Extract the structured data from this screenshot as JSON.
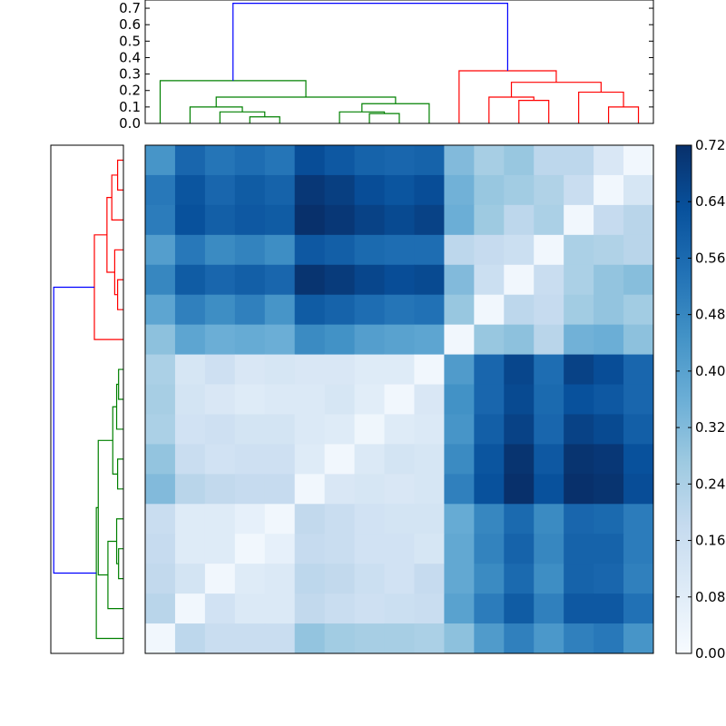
{
  "chart_data": [
    {
      "type": "dendrogram",
      "position": "top",
      "ylim": [
        0,
        0.75
      ],
      "yticks": [
        "0.0",
        "0.1",
        "0.2",
        "0.3",
        "0.4",
        "0.5",
        "0.6",
        "0.7"
      ],
      "colors": {
        "root": "#0000ff",
        "cluster_a": "#008000",
        "cluster_b": "#ff0000"
      },
      "leaves": 17,
      "merges": [
        {
          "a": 3.5,
          "b": 4.5,
          "h": 0.04,
          "color": "cluster_a"
        },
        {
          "a": 2.5,
          "b": 4,
          "h": 0.07,
          "color": "cluster_a"
        },
        {
          "a": 1.5,
          "b": 3.25,
          "h": 0.1,
          "color": "cluster_a"
        },
        {
          "a": 7.5,
          "b": 8.5,
          "h": 0.06,
          "color": "cluster_a"
        },
        {
          "a": 6.5,
          "b": 8,
          "h": 0.07,
          "color": "cluster_a"
        },
        {
          "a": 7.25,
          "b": 9.5,
          "h": 0.12,
          "color": "cluster_a"
        },
        {
          "a": 2.375,
          "b": 8.375,
          "h": 0.16,
          "color": "cluster_a"
        },
        {
          "a": 0.5,
          "b": 5.375,
          "h": 0.26,
          "color": "cluster_a"
        },
        {
          "a": 12.5,
          "b": 13.5,
          "h": 0.14,
          "color": "cluster_b"
        },
        {
          "a": 11.5,
          "b": 13,
          "h": 0.16,
          "color": "cluster_b"
        },
        {
          "a": 15.5,
          "b": 16.5,
          "h": 0.1,
          "color": "cluster_b"
        },
        {
          "a": 14.5,
          "b": 16,
          "h": 0.19,
          "color": "cluster_b"
        },
        {
          "a": 12.25,
          "b": 15.25,
          "h": 0.25,
          "color": "cluster_b"
        },
        {
          "a": 10.5,
          "b": 13.75,
          "h": 0.32,
          "color": "cluster_b"
        },
        {
          "a": 2.9375,
          "b": 12.125,
          "h": 0.73,
          "color": "root"
        }
      ]
    },
    {
      "type": "dendrogram",
      "position": "left",
      "xlim": [
        0,
        0.75
      ],
      "leaves": 17,
      "merges": [
        {
          "a": 0.5,
          "b": 1.5,
          "h": 0.06,
          "color": "cluster_b"
        },
        {
          "a": 1,
          "b": 2.5,
          "h": 0.12,
          "color": "cluster_b"
        },
        {
          "a": 4.5,
          "b": 5.5,
          "h": 0.06,
          "color": "cluster_b"
        },
        {
          "a": 3.5,
          "b": 5,
          "h": 0.09,
          "color": "cluster_b"
        },
        {
          "a": 1.75,
          "b": 4.25,
          "h": 0.17,
          "color": "cluster_b"
        },
        {
          "a": 3,
          "b": 6.5,
          "h": 0.3,
          "color": "cluster_b"
        },
        {
          "a": 7.5,
          "b": 8.5,
          "h": 0.05,
          "color": "cluster_a"
        },
        {
          "a": 8,
          "b": 9.5,
          "h": 0.07,
          "color": "cluster_a"
        },
        {
          "a": 10.5,
          "b": 11.5,
          "h": 0.06,
          "color": "cluster_a"
        },
        {
          "a": 8.75,
          "b": 11,
          "h": 0.11,
          "color": "cluster_a"
        },
        {
          "a": 13.5,
          "b": 14.5,
          "h": 0.05,
          "color": "cluster_a"
        },
        {
          "a": 12.5,
          "b": 14,
          "h": 0.07,
          "color": "cluster_a"
        },
        {
          "a": 13.25,
          "b": 15.5,
          "h": 0.16,
          "color": "cluster_a"
        },
        {
          "a": 9.875,
          "b": 14.375,
          "h": 0.26,
          "color": "cluster_a"
        },
        {
          "a": 12.125,
          "b": 16.5,
          "h": 0.28,
          "color": "cluster_a"
        },
        {
          "a": 4.75,
          "b": 14.3125,
          "h": 0.72,
          "color": "root"
        }
      ]
    },
    {
      "type": "heatmap",
      "rows": 17,
      "cols": 17,
      "vmin": 0,
      "vmax": 0.72,
      "colormap": "Blues",
      "values": [
        [
          0.44,
          0.57,
          0.53,
          0.55,
          0.53,
          0.64,
          0.61,
          0.58,
          0.57,
          0.58,
          0.32,
          0.25,
          0.28,
          0.2,
          0.2,
          0.11,
          0.02
        ],
        [
          0.52,
          0.62,
          0.57,
          0.6,
          0.58,
          0.7,
          0.68,
          0.64,
          0.62,
          0.64,
          0.35,
          0.28,
          0.26,
          0.23,
          0.17,
          0.02,
          0.12
        ],
        [
          0.51,
          0.63,
          0.59,
          0.61,
          0.6,
          0.72,
          0.7,
          0.67,
          0.65,
          0.67,
          0.36,
          0.27,
          0.2,
          0.24,
          0.02,
          0.18,
          0.21
        ],
        [
          0.41,
          0.52,
          0.47,
          0.49,
          0.46,
          0.61,
          0.59,
          0.56,
          0.55,
          0.55,
          0.2,
          0.18,
          0.16,
          0.02,
          0.24,
          0.23,
          0.21
        ],
        [
          0.48,
          0.6,
          0.57,
          0.59,
          0.57,
          0.71,
          0.69,
          0.66,
          0.64,
          0.65,
          0.32,
          0.16,
          0.02,
          0.17,
          0.24,
          0.29,
          0.31
        ],
        [
          0.39,
          0.5,
          0.46,
          0.5,
          0.44,
          0.6,
          0.58,
          0.55,
          0.53,
          0.54,
          0.28,
          0.02,
          0.2,
          0.18,
          0.26,
          0.29,
          0.26
        ],
        [
          0.3,
          0.39,
          0.36,
          0.37,
          0.36,
          0.47,
          0.45,
          0.41,
          0.4,
          0.39,
          0.02,
          0.28,
          0.3,
          0.21,
          0.35,
          0.36,
          0.3
        ],
        [
          0.24,
          0.12,
          0.15,
          0.11,
          0.12,
          0.11,
          0.11,
          0.09,
          0.09,
          0.02,
          0.42,
          0.57,
          0.66,
          0.55,
          0.67,
          0.64,
          0.57
        ],
        [
          0.25,
          0.13,
          0.11,
          0.09,
          0.1,
          0.1,
          0.12,
          0.08,
          0.02,
          0.11,
          0.45,
          0.57,
          0.65,
          0.56,
          0.63,
          0.61,
          0.57
        ],
        [
          0.24,
          0.14,
          0.15,
          0.13,
          0.13,
          0.1,
          0.09,
          0.03,
          0.09,
          0.1,
          0.44,
          0.59,
          0.67,
          0.57,
          0.67,
          0.65,
          0.59
        ],
        [
          0.29,
          0.17,
          0.14,
          0.15,
          0.15,
          0.09,
          0.02,
          0.1,
          0.13,
          0.12,
          0.47,
          0.62,
          0.71,
          0.61,
          0.71,
          0.7,
          0.63
        ],
        [
          0.32,
          0.21,
          0.19,
          0.18,
          0.18,
          0.02,
          0.11,
          0.12,
          0.11,
          0.12,
          0.5,
          0.63,
          0.72,
          0.63,
          0.73,
          0.71,
          0.64
        ],
        [
          0.17,
          0.09,
          0.09,
          0.06,
          0.02,
          0.19,
          0.17,
          0.14,
          0.13,
          0.13,
          0.37,
          0.48,
          0.56,
          0.47,
          0.57,
          0.56,
          0.51
        ],
        [
          0.18,
          0.09,
          0.09,
          0.02,
          0.06,
          0.18,
          0.17,
          0.14,
          0.14,
          0.12,
          0.38,
          0.49,
          0.58,
          0.48,
          0.58,
          0.58,
          0.51
        ],
        [
          0.19,
          0.13,
          0.02,
          0.09,
          0.1,
          0.2,
          0.19,
          0.16,
          0.14,
          0.18,
          0.38,
          0.47,
          0.56,
          0.46,
          0.58,
          0.57,
          0.5
        ],
        [
          0.21,
          0.02,
          0.14,
          0.1,
          0.1,
          0.19,
          0.17,
          0.15,
          0.16,
          0.17,
          0.4,
          0.51,
          0.6,
          0.5,
          0.61,
          0.61,
          0.54
        ],
        [
          0.02,
          0.2,
          0.17,
          0.17,
          0.17,
          0.29,
          0.26,
          0.25,
          0.25,
          0.24,
          0.3,
          0.42,
          0.5,
          0.43,
          0.5,
          0.52,
          0.44
        ]
      ]
    },
    {
      "type": "colorbar",
      "ticks": [
        "0.00",
        "0.08",
        "0.16",
        "0.24",
        "0.32",
        "0.40",
        "0.48",
        "0.56",
        "0.64",
        "0.72"
      ],
      "vmin": 0,
      "vmax": 0.72
    }
  ]
}
